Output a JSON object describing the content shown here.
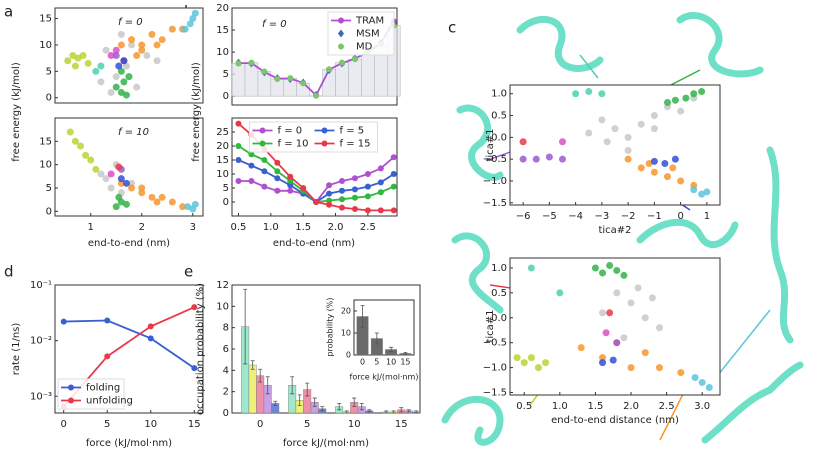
{
  "panel_labels": [
    "a",
    "b",
    "c",
    "d",
    "e"
  ],
  "chart_data": [
    {
      "type": "scatter",
      "annotation": "f = 0",
      "ylabel": "free energy (kJ/mol)",
      "xlim": [
        0.3,
        3.2
      ],
      "ylim": [
        -1,
        17
      ],
      "yticks": [
        0,
        5,
        10,
        15
      ],
      "series": [
        {
          "color": "#c8c8c8",
          "x": [
            1.2,
            1.4,
            1.5,
            1.7,
            1.9,
            2.1,
            1.3,
            1.6,
            1.8,
            2.3
          ],
          "y": [
            3,
            1,
            4,
            6,
            2,
            8,
            9,
            12,
            10,
            7
          ]
        },
        {
          "color": "#b8d433",
          "x": [
            0.55,
            0.65,
            0.75,
            0.85,
            0.95,
            0.7
          ],
          "y": [
            7,
            8,
            7.5,
            8,
            6.5,
            6
          ]
        },
        {
          "color": "#f7962e",
          "x": [
            1.6,
            1.8,
            2.0,
            2.2,
            2.4,
            2.6,
            2.8,
            2.0,
            2.3,
            1.9
          ],
          "y": [
            10,
            11,
            10,
            12,
            11,
            13,
            13,
            9,
            10,
            8
          ]
        },
        {
          "color": "#5ec4dc",
          "x": [
            2.85,
            2.95,
            3.0,
            3.05
          ],
          "y": [
            13,
            14,
            15,
            16
          ]
        },
        {
          "color": "#33b14a",
          "x": [
            1.5,
            1.6,
            1.65,
            1.7,
            1.75,
            1.6
          ],
          "y": [
            2,
            1,
            3,
            0.5,
            4,
            5
          ]
        },
        {
          "color": "#4dd0b0",
          "x": [
            1.1,
            1.2
          ],
          "y": [
            5,
            6
          ]
        },
        {
          "color": "#d94fc7",
          "x": [
            1.4,
            1.5
          ],
          "y": [
            8,
            9
          ]
        },
        {
          "color": "#e8394a",
          "x": [
            1.65
          ],
          "y": [
            7
          ]
        },
        {
          "color": "#9b59d0",
          "x": [
            1.5
          ],
          "y": [
            8
          ]
        },
        {
          "color": "#3050d8",
          "x": [
            1.55,
            1.65
          ],
          "y": [
            6,
            7
          ]
        }
      ]
    },
    {
      "type": "scatter",
      "annotation": "f = 10",
      "xlabel": "end-to-end (nm)",
      "xlim": [
        0.3,
        3.2
      ],
      "ylim": [
        -1,
        20
      ],
      "xticks": [
        1,
        2,
        3
      ],
      "yticks": [
        0,
        5,
        10,
        15
      ],
      "series": [
        {
          "color": "#c8c8c8",
          "x": [
            1.2,
            1.4,
            1.6,
            1.5,
            1.8,
            1.3
          ],
          "y": [
            8,
            5,
            4,
            10,
            6,
            7
          ]
        },
        {
          "color": "#b8d433",
          "x": [
            0.6,
            0.7,
            0.8,
            0.9,
            1.0,
            1.1
          ],
          "y": [
            17,
            15,
            14,
            12,
            11,
            9
          ]
        },
        {
          "color": "#f7962e",
          "x": [
            1.6,
            1.8,
            2.0,
            2.2,
            2.4,
            2.6,
            2.8,
            2.0,
            2.3
          ],
          "y": [
            6,
            5,
            4,
            3,
            3,
            2,
            1,
            5,
            2
          ]
        },
        {
          "color": "#5ec4dc",
          "x": [
            2.9,
            3.0,
            3.05
          ],
          "y": [
            1,
            0.5,
            1.5
          ]
        },
        {
          "color": "#33b14a",
          "x": [
            1.5,
            1.6,
            1.7,
            1.55
          ],
          "y": [
            1,
            2,
            1.5,
            3
          ]
        },
        {
          "color": "#d94fc7",
          "x": [
            1.4
          ],
          "y": [
            8
          ]
        },
        {
          "color": "#9b59d0",
          "x": [
            1.6
          ],
          "y": [
            9
          ]
        },
        {
          "color": "#e8394a",
          "x": [
            1.55
          ],
          "y": [
            9.5
          ]
        },
        {
          "color": "#3050d8",
          "x": [
            1.6,
            1.7
          ],
          "y": [
            7,
            6
          ]
        }
      ]
    },
    {
      "type": "line",
      "annotation": "f = 0",
      "ylabel": "free energy (kJ/mol)",
      "legend": "upper right",
      "xlim": [
        0.4,
        2.95
      ],
      "ylim": [
        -2,
        20
      ],
      "yticks": [
        0,
        5,
        10,
        15,
        20
      ],
      "x": [
        0.5,
        0.7,
        0.9,
        1.1,
        1.3,
        1.5,
        1.7,
        1.9,
        2.1,
        2.3,
        2.5,
        2.7,
        2.9
      ],
      "series": [
        {
          "name": "TRAM",
          "color": "#b04fd0",
          "marker": "circle",
          "line": true,
          "values": [
            7.5,
            7.5,
            5.5,
            4,
            4,
            3,
            0.2,
            6,
            7.5,
            8.5,
            10,
            12,
            17
          ]
        },
        {
          "name": "MSM",
          "color": "#3a6bb0",
          "marker": "diamond",
          "line": false,
          "values": [
            7.6,
            7.4,
            5.4,
            4.1,
            3.9,
            3.1,
            0.3,
            5.9,
            7.4,
            8.6,
            10.2,
            12.1,
            16.5
          ]
        },
        {
          "name": "MD",
          "color": "#7ac86a",
          "marker": "circle",
          "line": false,
          "bars": true,
          "values": [
            7.4,
            7.6,
            5.6,
            3.9,
            4.1,
            2.9,
            0.1,
            6.1,
            7.6,
            8.4,
            9.9,
            11.8,
            16
          ]
        }
      ]
    },
    {
      "type": "line",
      "xlabel": "end-to-end (nm)",
      "legend": "upper center",
      "columns": 2,
      "xlim": [
        0.4,
        2.95
      ],
      "ylim": [
        -5,
        30
      ],
      "xticks": [
        0.5,
        {
          "value": 1.0,
          "label": "1.0"
        },
        1.5,
        {
          "value": 2.0,
          "label": "2.0"
        },
        2.5
      ],
      "yticks": [
        0,
        5,
        10,
        15,
        20,
        25
      ],
      "x": [
        0.5,
        0.7,
        0.9,
        1.1,
        1.3,
        1.5,
        1.7,
        1.9,
        2.1,
        2.3,
        2.5,
        2.7,
        2.9
      ],
      "series": [
        {
          "name": "f = 0",
          "color": "#b04fd0",
          "marker": "circle",
          "line": true,
          "values": [
            7.5,
            7.5,
            5.5,
            4,
            4,
            3,
            0,
            6,
            7.5,
            8.5,
            10,
            12,
            16
          ]
        },
        {
          "name": "f = 5",
          "color": "#3a5fd0",
          "marker": "circle",
          "line": true,
          "values": [
            15,
            13,
            11,
            8.5,
            6,
            3,
            0,
            3,
            4,
            4.5,
            5.5,
            7,
            10
          ]
        },
        {
          "name": "f = 10",
          "color": "#2eb83c",
          "marker": "circle",
          "line": true,
          "values": [
            20,
            17,
            15,
            11,
            7.5,
            4,
            0,
            0.5,
            1,
            1.5,
            2,
            3.5,
            5.5
          ]
        },
        {
          "name": "f = 15",
          "color": "#e8394a",
          "marker": "circle",
          "line": true,
          "values": [
            28,
            24,
            19,
            14,
            9,
            5,
            0,
            -1,
            -2,
            -2.5,
            -3,
            -3,
            -3
          ]
        }
      ]
    },
    {
      "type": "scatter",
      "xlabel": "tica#2",
      "ylabel": "tica#1",
      "xlim": [
        -6.5,
        1.5
      ],
      "ylim": [
        -1.55,
        1.2
      ],
      "xticks": [
        {
          "value": -6,
          "label": "−6"
        },
        {
          "value": -5,
          "label": "−5"
        },
        {
          "value": -4,
          "label": "−4"
        },
        {
          "value": -3,
          "label": "−3"
        },
        {
          "value": -2,
          "label": "−2"
        },
        {
          "value": -1,
          "label": "−1"
        },
        0,
        1
      ],
      "yticks": [
        {
          "value": -1.5,
          "label": "−1.5"
        },
        {
          "value": -1.0,
          "label": "−1.0"
        },
        {
          "value": -0.5,
          "label": "−0.5"
        },
        {
          "value": 0.0,
          "label": "0.0"
        },
        0.5,
        {
          "value": 1.0,
          "label": "1.0"
        }
      ],
      "series": [
        {
          "color": "#c8c8c8",
          "x": [
            -3,
            -2.5,
            -2,
            -1.5,
            -1,
            -0.5,
            0,
            -3.5,
            -2,
            -1,
            0.5,
            -2.8
          ],
          "y": [
            0.4,
            0.2,
            0,
            0.3,
            0.5,
            0.7,
            0.6,
            0.1,
            -0.3,
            0.2,
            0.9,
            -0.1
          ]
        },
        {
          "color": "#33b14a",
          "x": [
            -0.5,
            -0.2,
            0.2,
            0.5,
            0.8
          ],
          "y": [
            0.8,
            0.85,
            0.9,
            1.0,
            1.05
          ]
        },
        {
          "color": "#4dd0b0",
          "x": [
            -4,
            -3.5,
            -3
          ],
          "y": [
            1.0,
            1.05,
            1.0
          ]
        },
        {
          "color": "#9b59d0",
          "x": [
            -6,
            -5.5,
            -5,
            -4.5
          ],
          "y": [
            -0.5,
            -0.5,
            -0.45,
            -0.5
          ]
        },
        {
          "color": "#d94fc7",
          "x": [
            -4.5
          ],
          "y": [
            -0.1
          ]
        },
        {
          "color": "#e8394a",
          "x": [
            -6
          ],
          "y": [
            -0.1
          ]
        },
        {
          "color": "#f7962e",
          "x": [
            -2,
            -1.5,
            -1,
            -0.5,
            0,
            0.5,
            -1.2,
            -0.3
          ],
          "y": [
            -0.5,
            -0.7,
            -0.8,
            -0.9,
            -1.0,
            -1.1,
            -0.6,
            -0.7
          ]
        },
        {
          "color": "#3050d8",
          "x": [
            -1,
            -0.6,
            -0.2
          ],
          "y": [
            -0.55,
            -0.6,
            -0.5
          ]
        },
        {
          "color": "#5ec4dc",
          "x": [
            0.5,
            0.8,
            1.0
          ],
          "y": [
            -1.2,
            -1.3,
            -1.25
          ]
        }
      ]
    },
    {
      "type": "scatter",
      "xlabel": "end-to-end distance (nm)",
      "ylabel": "tica#1",
      "xlim": [
        0.3,
        3.25
      ],
      "ylim": [
        -1.55,
        1.2
      ],
      "xticks": [
        0.5,
        {
          "value": 1.0,
          "label": "1.0"
        },
        1.5,
        {
          "value": 2.0,
          "label": "2.0"
        },
        2.5,
        {
          "value": 3.0,
          "label": "3.0"
        }
      ],
      "yticks": [
        {
          "value": -1.5,
          "label": "−1.5"
        },
        {
          "value": -1.0,
          "label": "−1.0"
        },
        {
          "value": -0.5,
          "label": "−0.5"
        },
        {
          "value": 0.0,
          "label": "0.0"
        },
        0.5,
        {
          "value": 1.0,
          "label": "1.0"
        }
      ],
      "series": [
        {
          "color": "#c8c8c8",
          "x": [
            1.8,
            2.0,
            2.2,
            2.4,
            1.6,
            2.1,
            2.3,
            1.9
          ],
          "y": [
            0.5,
            0.3,
            0,
            -0.2,
            0.1,
            0.6,
            0.4,
            -0.4
          ]
        },
        {
          "color": "#33b14a",
          "x": [
            1.5,
            1.6,
            1.7,
            1.8,
            1.9
          ],
          "y": [
            1.0,
            0.9,
            1.05,
            0.95,
            0.85
          ]
        },
        {
          "color": "#4dd0b0",
          "x": [
            0.6,
            1.0
          ],
          "y": [
            1.0,
            0.5
          ]
        },
        {
          "color": "#b8d433",
          "x": [
            0.4,
            0.5,
            0.6,
            0.7,
            0.8
          ],
          "y": [
            -0.8,
            -0.9,
            -0.8,
            -1.0,
            -0.9
          ]
        },
        {
          "color": "#f7962e",
          "x": [
            1.3,
            1.6,
            2.0,
            2.4,
            2.7,
            1.8,
            2.2
          ],
          "y": [
            -0.6,
            -0.8,
            -1.0,
            -1.0,
            -1.1,
            -0.5,
            -0.7
          ]
        },
        {
          "color": "#e8394a",
          "x": [
            1.7
          ],
          "y": [
            0.1
          ]
        },
        {
          "color": "#d94fc7",
          "x": [
            1.65
          ],
          "y": [
            -0.3
          ]
        },
        {
          "color": "#9b59d0",
          "x": [
            1.8
          ],
          "y": [
            -0.5
          ]
        },
        {
          "color": "#3050d8",
          "x": [
            1.6,
            1.75
          ],
          "y": [
            -0.9,
            -0.85
          ]
        },
        {
          "color": "#5ec4dc",
          "x": [
            2.9,
            3.0,
            3.1
          ],
          "y": [
            -1.2,
            -1.3,
            -1.4
          ]
        }
      ]
    },
    {
      "type": "line",
      "log_y": true,
      "xlabel": "force (kJ/mol·nm)",
      "ylabel": "rate (1/ns)",
      "legend": "lower left",
      "xlim": [
        -1,
        16
      ],
      "ylim": [
        0.0005,
        0.1
      ],
      "xticks": [
        0,
        5,
        10,
        15
      ],
      "yticks": [
        {
          "value": 0.001,
          "label": "10⁻³"
        },
        {
          "value": 0.01,
          "label": "10⁻²"
        },
        {
          "value": 0.1,
          "label": "10⁻¹"
        }
      ],
      "x": [
        0,
        5,
        10,
        15
      ],
      "series": [
        {
          "name": "folding",
          "color": "#3a5fd0",
          "marker": "circle",
          "line": true,
          "values": [
            0.022,
            0.023,
            0.011,
            0.0032
          ]
        },
        {
          "name": "unfolding",
          "color": "#e8394a",
          "marker": "circle",
          "line": true,
          "values": [
            0.00065,
            0.0052,
            0.018,
            0.04
          ]
        }
      ]
    },
    {
      "type": "bar",
      "xlabel": "force kJ/(mol·nm)",
      "ylabel": "occupation probability (%)",
      "xlim": [
        -3,
        17
      ],
      "ylim": [
        0,
        12
      ],
      "xticks": [
        0,
        5,
        10,
        15
      ],
      "yticks": [
        0,
        2,
        4,
        6,
        8,
        10,
        12
      ],
      "x": [
        0,
        5,
        10,
        15
      ],
      "series": [
        {
          "color": "#9ee8cc",
          "values": [
            8.1,
            2.6,
            0.6,
            0.1
          ],
          "errors": [
            3.5,
            0.8,
            0.3,
            0.1
          ]
        },
        {
          "color": "#eef07a",
          "values": [
            4.5,
            1.2,
            0.1,
            0.1
          ],
          "errors": [
            0.4,
            0.5,
            0.1,
            0.1
          ]
        },
        {
          "color": "#f08fa8",
          "values": [
            3.5,
            2.2,
            1.0,
            0.3
          ],
          "errors": [
            0.6,
            0.6,
            0.4,
            0.2
          ]
        },
        {
          "color": "#c7a0e8",
          "values": [
            2.6,
            1.0,
            0.6,
            0.2
          ],
          "errors": [
            0.8,
            0.4,
            0.3,
            0.1
          ]
        },
        {
          "color": "#6f86d8",
          "values": [
            0.9,
            0.4,
            0.2,
            0.1
          ],
          "errors": [
            0.2,
            0.2,
            0.1,
            0.1
          ]
        }
      ]
    },
    {
      "type": "bar",
      "xlabel": "force kJ/(mol·nm)",
      "ylabel": "probability (%)",
      "xlim": [
        -3,
        18
      ],
      "ylim": [
        0,
        25
      ],
      "xticks": [
        0,
        5,
        10,
        15
      ],
      "yticks": [
        0,
        10,
        20
      ],
      "x": [
        0,
        5,
        10,
        15
      ],
      "series": [
        {
          "color": "#6a6a6a",
          "values": [
            17.5,
            7.5,
            2.5,
            0.7
          ],
          "errors": [
            5,
            2.5,
            1,
            0.3
          ]
        }
      ]
    }
  ]
}
